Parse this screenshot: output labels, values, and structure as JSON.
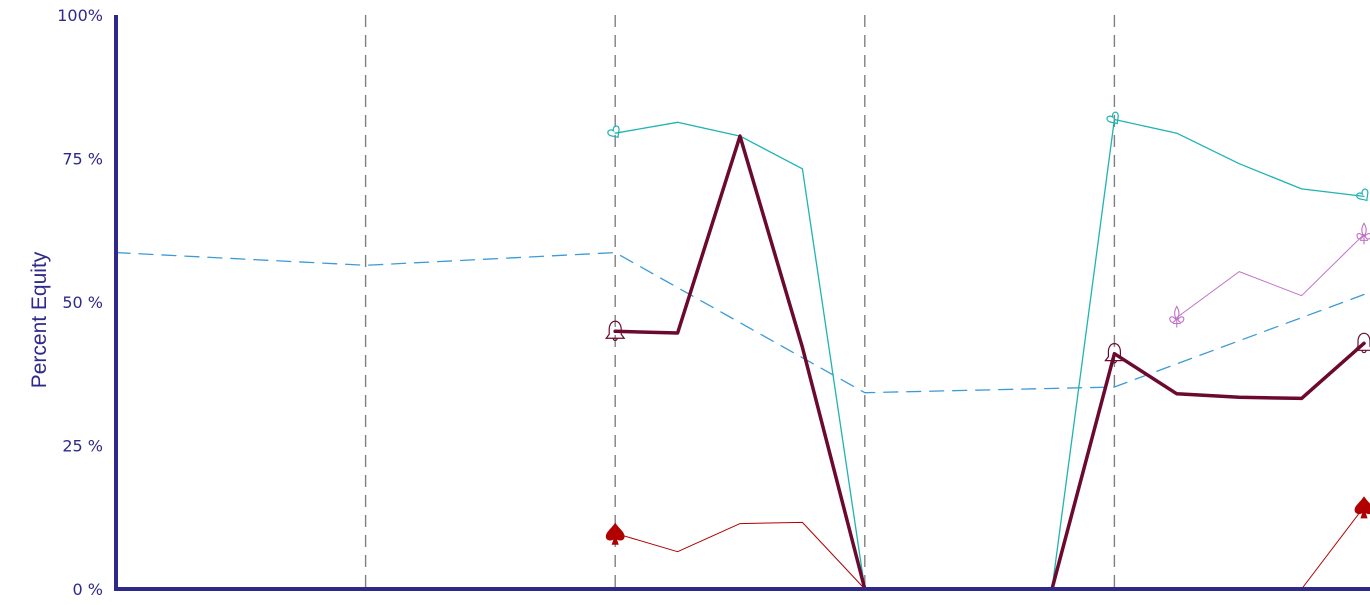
{
  "chart_data": {
    "type": "line",
    "title": "",
    "xlabel": "",
    "ylabel": "Percent Equity",
    "ylim": [
      0,
      100
    ],
    "yticks": [
      {
        "value": 100,
        "label": "100%"
      },
      {
        "value": 75,
        "label": "75 %"
      },
      {
        "value": 50,
        "label": "50 %"
      },
      {
        "value": 25,
        "label": "25 %"
      },
      {
        "value": 0,
        "label": "0 %"
      }
    ],
    "xlim": [
      0,
      20
    ],
    "street_boundaries": [
      4,
      8,
      12,
      16
    ],
    "grid": "vertical dashed lines at street boundaries",
    "series": [
      {
        "color": "#3b9bd6",
        "style": "dashed",
        "width": 1.3,
        "marker": null,
        "x": [
          0,
          4,
          8,
          12,
          16,
          20
        ],
        "y": [
          58.6,
          56.4,
          58.6,
          34.2,
          35.2,
          51.3
        ]
      },
      {
        "color": "#1fb3b3",
        "style": "solid",
        "width": 1.3,
        "marker": "heart-outline",
        "x": [
          8,
          9,
          10,
          11,
          12,
          15,
          16,
          17,
          18,
          19,
          20
        ],
        "y": [
          79.4,
          81.3,
          78.9,
          73.2,
          0,
          0,
          81.8,
          79.4,
          74.1,
          69.7,
          68.4
        ]
      },
      {
        "color": "#6b0a2e",
        "style": "solid",
        "width": 3.5,
        "marker": "bell",
        "x": [
          8,
          9,
          10,
          11,
          12,
          15,
          16,
          17,
          18,
          19,
          20
        ],
        "y": [
          44.9,
          44.6,
          78.9,
          42.1,
          0,
          0,
          41.0,
          34.0,
          33.4,
          33.2,
          42.8
        ]
      },
      {
        "color": "#b00000",
        "style": "solid",
        "width": 1,
        "marker": "spade",
        "x": [
          8,
          9,
          10,
          11,
          12,
          19,
          20
        ],
        "y": [
          9.7,
          6.5,
          11.4,
          11.6,
          0,
          0,
          14.3
        ]
      },
      {
        "color": "#c070c8",
        "style": "solid",
        "width": 1,
        "marker": "fleur-de-lis",
        "x": [
          17,
          18,
          19,
          20
        ],
        "y": [
          47.3,
          55.3,
          51.1,
          61.8
        ]
      }
    ]
  },
  "colors": {
    "axis": "#2e2a8c",
    "grid": "#808080",
    "text": "#2e2a8c"
  }
}
